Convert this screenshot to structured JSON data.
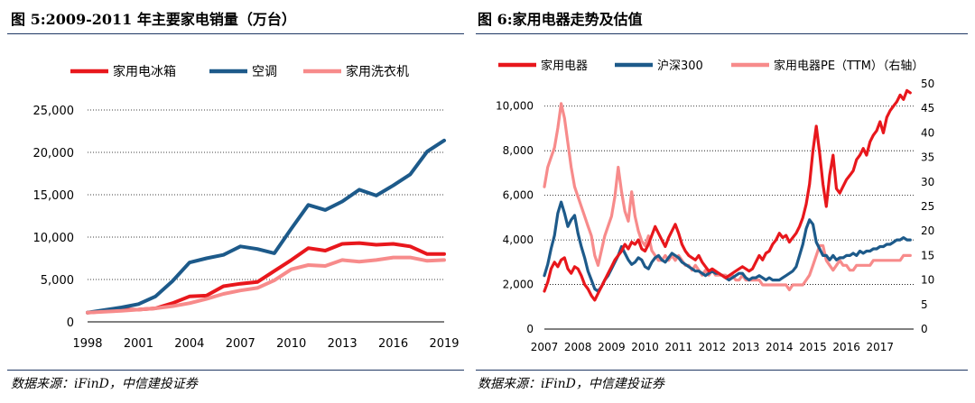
{
  "left": {
    "title": "图 5:2009-2011 年主要家电销量（万台）",
    "source": "数据来源：iFinD，中信建投证券"
  },
  "right": {
    "title": "图 6:家用电器走势及估值",
    "source": "数据来源：iFinD，中信建投证券"
  },
  "colors": {
    "red": "#e8171c",
    "navy": "#1d5a8a",
    "pink": "#f78b8b",
    "rule": "#1f3864"
  },
  "chart_data": [
    {
      "type": "line",
      "title": "图 5:2009-2011 年主要家电销量（万台）",
      "x": [
        1998,
        1999,
        2000,
        2001,
        2002,
        2003,
        2004,
        2005,
        2006,
        2007,
        2008,
        2009,
        2010,
        2011,
        2012,
        2013,
        2014,
        2015,
        2016,
        2017,
        2018,
        2019
      ],
      "xticks": [
        1998,
        2001,
        2004,
        2007,
        2010,
        2013,
        2016,
        2019
      ],
      "yticks": [
        0,
        5000,
        10000,
        15000,
        20000,
        25000
      ],
      "ytick_labels": [
        "0",
        "5,000",
        "10,000",
        "15,000",
        "20,000",
        "25,000"
      ],
      "ylim": [
        0,
        25000
      ],
      "xlim": [
        1998,
        2019
      ],
      "grid": "horizontal-dotted",
      "legend": "top",
      "series": [
        {
          "name": "家用电冰箱",
          "color": "#e8171c",
          "values": [
            1100,
            1250,
            1400,
            1450,
            1600,
            2200,
            3000,
            3100,
            4200,
            4500,
            4700,
            6000,
            7300,
            8700,
            8400,
            9200,
            9300,
            9100,
            9200,
            8900,
            8000,
            8000
          ]
        },
        {
          "name": "空调",
          "color": "#1d5a8a",
          "values": [
            1100,
            1400,
            1700,
            2100,
            3000,
            4800,
            7000,
            7500,
            7900,
            8900,
            8600,
            8100,
            11000,
            13800,
            13200,
            14200,
            15600,
            14900,
            16100,
            17400,
            20100,
            21400
          ]
        },
        {
          "name": "家用洗衣机",
          "color": "#f78b8b",
          "values": [
            1100,
            1200,
            1300,
            1450,
            1600,
            1850,
            2200,
            2700,
            3300,
            3700,
            4000,
            4900,
            6200,
            6700,
            6600,
            7300,
            7100,
            7300,
            7600,
            7600,
            7200,
            7300
          ]
        }
      ]
    },
    {
      "type": "line",
      "title": "图 6:家用电器走势及估值",
      "x": [
        2007.0,
        2007.1,
        2007.2,
        2007.3,
        2007.4,
        2007.5,
        2007.6,
        2007.7,
        2007.8,
        2007.9,
        2008.0,
        2008.1,
        2008.2,
        2008.3,
        2008.4,
        2008.5,
        2008.6,
        2008.7,
        2008.8,
        2008.9,
        2009.0,
        2009.1,
        2009.2,
        2009.3,
        2009.4,
        2009.5,
        2009.6,
        2009.7,
        2009.8,
        2009.9,
        2010.0,
        2010.1,
        2010.2,
        2010.3,
        2010.4,
        2010.5,
        2010.6,
        2010.7,
        2010.8,
        2010.9,
        2011.0,
        2011.1,
        2011.2,
        2011.3,
        2011.4,
        2011.5,
        2011.6,
        2011.7,
        2011.8,
        2011.9,
        2012.0,
        2012.1,
        2012.2,
        2012.3,
        2012.4,
        2012.5,
        2012.6,
        2012.7,
        2012.8,
        2012.9,
        2013.0,
        2013.1,
        2013.2,
        2013.3,
        2013.4,
        2013.5,
        2013.6,
        2013.7,
        2013.8,
        2013.9,
        2014.0,
        2014.1,
        2014.2,
        2014.3,
        2014.4,
        2014.5,
        2014.6,
        2014.7,
        2014.8,
        2014.9,
        2015.0,
        2015.1,
        2015.2,
        2015.3,
        2015.4,
        2015.5,
        2015.6,
        2015.7,
        2015.8,
        2015.9,
        2016.0,
        2016.1,
        2016.2,
        2016.3,
        2016.4,
        2016.5,
        2016.6,
        2016.7,
        2016.8,
        2016.9,
        2017.0,
        2017.1,
        2017.2,
        2017.3,
        2017.4,
        2017.5,
        2017.6,
        2017.7,
        2017.8,
        2017.9
      ],
      "xticks": [
        2007,
        2008,
        2009,
        2010,
        2011,
        2012,
        2013,
        2014,
        2015,
        2016,
        2017
      ],
      "xlim": [
        2007,
        2018
      ],
      "y_left_ticks": [
        0,
        2000,
        4000,
        6000,
        8000,
        10000
      ],
      "y_left_tick_labels": [
        "0",
        "2,000",
        "4,000",
        "6,000",
        "8,000",
        "10,000"
      ],
      "y_left_lim": [
        0,
        11000
      ],
      "y_right_ticks": [
        0,
        5,
        10,
        15,
        20,
        25,
        30,
        35,
        40,
        45,
        50
      ],
      "y_right_lim": [
        0,
        50
      ],
      "grid": "horizontal-dotted",
      "legend": "top",
      "series": [
        {
          "name": "家用电器",
          "color": "#e8171c",
          "axis": "left",
          "values": [
            1700,
            2100,
            2700,
            3000,
            2800,
            3100,
            3200,
            2700,
            2500,
            2800,
            2700,
            2400,
            2000,
            1800,
            1500,
            1300,
            1600,
            1900,
            2200,
            2500,
            2800,
            3100,
            3300,
            3500,
            3800,
            3600,
            3900,
            3800,
            4000,
            3600,
            3500,
            3800,
            4200,
            4600,
            4300,
            4000,
            3700,
            4100,
            4400,
            4700,
            4300,
            3800,
            3500,
            3300,
            3200,
            3100,
            3300,
            3000,
            2800,
            2600,
            2700,
            2600,
            2500,
            2400,
            2300,
            2400,
            2500,
            2600,
            2700,
            2800,
            2700,
            2600,
            2700,
            3000,
            3300,
            3100,
            3400,
            3500,
            3800,
            4000,
            4300,
            4100,
            4200,
            3900,
            4100,
            4300,
            4600,
            5000,
            5600,
            6500,
            8000,
            9100,
            7900,
            6500,
            5500,
            6900,
            7800,
            6300,
            6100,
            6400,
            6700,
            6900,
            7100,
            7600,
            7800,
            8100,
            7800,
            8400,
            8700,
            8900,
            9300,
            8800,
            9500,
            9800,
            10000,
            10200,
            10500,
            10300,
            10700,
            10600
          ]
        },
        {
          "name": "沪深300",
          "color": "#1d5a8a",
          "axis": "left",
          "values": [
            2400,
            2900,
            3600,
            4200,
            5200,
            5700,
            5200,
            4600,
            4900,
            5100,
            4300,
            3700,
            3200,
            2600,
            2200,
            1800,
            1700,
            1900,
            2200,
            2400,
            2700,
            3000,
            3300,
            3700,
            3400,
            3100,
            2900,
            3000,
            3200,
            3100,
            2800,
            2700,
            3000,
            3200,
            3300,
            3100,
            3000,
            3200,
            3400,
            3300,
            3200,
            3000,
            2900,
            2800,
            2700,
            2600,
            2600,
            2500,
            2400,
            2500,
            2600,
            2500,
            2500,
            2400,
            2300,
            2200,
            2300,
            2400,
            2500,
            2500,
            2300,
            2200,
            2300,
            2300,
            2400,
            2300,
            2200,
            2300,
            2200,
            2200,
            2200,
            2300,
            2400,
            2500,
            2600,
            2800,
            3300,
            3800,
            4500,
            4900,
            4700,
            3900,
            3600,
            3300,
            3300,
            3100,
            3300,
            3100,
            3200,
            3200,
            3300,
            3300,
            3400,
            3300,
            3500,
            3400,
            3500,
            3500,
            3600,
            3600,
            3700,
            3700,
            3800,
            3800,
            3900,
            4000,
            4000,
            4100,
            4000,
            4000
          ]
        },
        {
          "name": "家用电器PE（TTM）（右轴）",
          "color": "#f78b8b",
          "axis": "right",
          "values": [
            29,
            33,
            35,
            37,
            41,
            46,
            43,
            38,
            33,
            29,
            27,
            25,
            23,
            21,
            19,
            15,
            13,
            16,
            19,
            21,
            23,
            27,
            33,
            28,
            24,
            22,
            28,
            23,
            20,
            18,
            17,
            19,
            16,
            15,
            14,
            14,
            15,
            14,
            15,
            14,
            15,
            14,
            13,
            13,
            12,
            13,
            12,
            11,
            12,
            11,
            12,
            11,
            11,
            11,
            11,
            10,
            11,
            10,
            10,
            11,
            10,
            10,
            10,
            10,
            10,
            9,
            9,
            9,
            9,
            9,
            9,
            9,
            9,
            8,
            9,
            9,
            9,
            9,
            10,
            11,
            13,
            15,
            17,
            17,
            14,
            13,
            12,
            13,
            14,
            13,
            13,
            12,
            12,
            13,
            13,
            13,
            13,
            13,
            14,
            14,
            14,
            14,
            14,
            14,
            14,
            14,
            14,
            15,
            15,
            15
          ]
        }
      ]
    }
  ]
}
